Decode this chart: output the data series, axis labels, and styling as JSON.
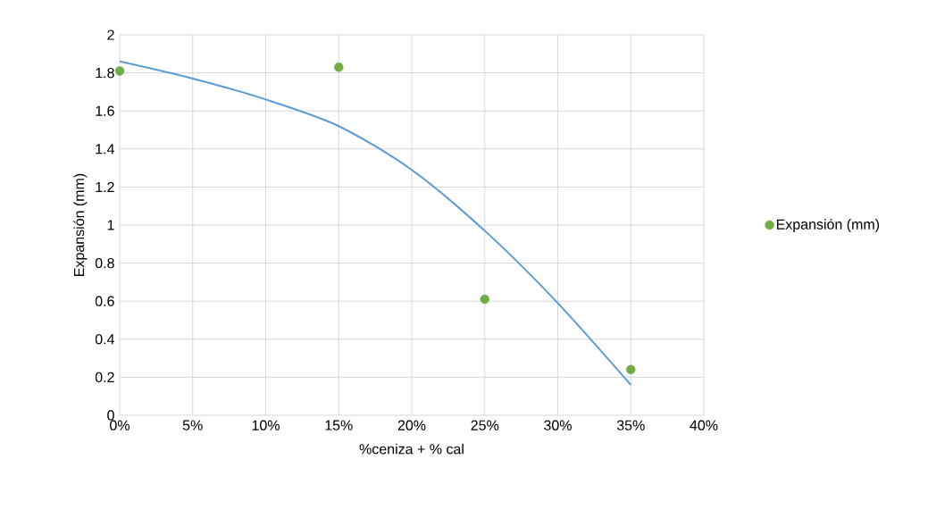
{
  "chart_data": {
    "type": "scatter",
    "xlabel": "%ceniza + % cal",
    "ylabel": "Expansión (mm)",
    "xlim": [
      0,
      40
    ],
    "ylim": [
      0,
      2
    ],
    "xticks": [
      {
        "value": 0,
        "label": "0%"
      },
      {
        "value": 5,
        "label": "5%"
      },
      {
        "value": 10,
        "label": "10%"
      },
      {
        "value": 15,
        "label": "15%"
      },
      {
        "value": 20,
        "label": "20%"
      },
      {
        "value": 25,
        "label": "25%"
      },
      {
        "value": 30,
        "label": "30%"
      },
      {
        "value": 35,
        "label": "35%"
      },
      {
        "value": 40,
        "label": "40%"
      }
    ],
    "yticks": [
      0,
      0.2,
      0.4,
      0.6,
      0.8,
      1,
      1.2,
      1.4,
      1.6,
      1.8,
      2
    ],
    "grid": true,
    "legend": "right",
    "series": [
      {
        "name": "Expansión (mm)",
        "type": "scatter",
        "marker": "circle",
        "color": "#70ad47",
        "x": [
          0,
          15,
          25,
          35
        ],
        "values": [
          1.81,
          1.83,
          0.61,
          0.24
        ]
      },
      {
        "type": "line",
        "marker": "none",
        "line_style": "solid",
        "color": "#5b9bd5",
        "x": [
          0,
          5,
          10,
          15,
          20,
          25,
          30,
          35
        ],
        "values": [
          1.86,
          1.77,
          1.66,
          1.52,
          1.29,
          0.97,
          0.59,
          0.16
        ]
      }
    ]
  }
}
